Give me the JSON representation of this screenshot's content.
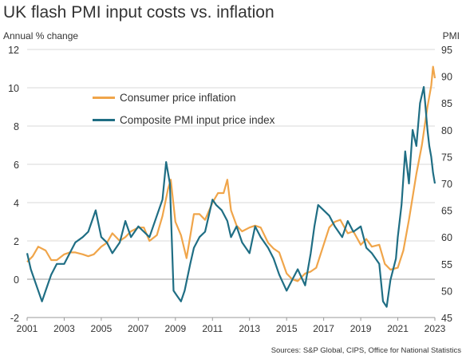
{
  "chart_data": {
    "type": "line",
    "title": "UK flash PMI input costs vs. inflation",
    "ylabel_left": "Annual % change",
    "ylabel_right": "PMI",
    "ylim_left": [
      -2,
      12
    ],
    "ylim_right": [
      45,
      95
    ],
    "xlim": [
      2001,
      2023
    ],
    "x_ticks": [
      "2001",
      "2003",
      "2005",
      "2007",
      "2009",
      "2011",
      "2013",
      "2015",
      "2017",
      "2019",
      "2021",
      "2023"
    ],
    "y_left_ticks": [
      "-2",
      "0",
      "2",
      "4",
      "6",
      "8",
      "10",
      "12"
    ],
    "y_right_ticks": [
      "45",
      "50",
      "55",
      "60",
      "65",
      "70",
      "75",
      "80",
      "85",
      "90",
      "95"
    ],
    "grid": true,
    "legend_position": "top-left",
    "source": "Sources: S&P Global, CIPS, Office for National Statistics",
    "series": [
      {
        "name": "Consumer price inflation",
        "axis": "left",
        "color": "#f0a54a",
        "x": [
          2001.0,
          2001.3,
          2001.6,
          2002.0,
          2002.3,
          2002.6,
          2003.0,
          2003.3,
          2003.6,
          2004.0,
          2004.3,
          2004.6,
          2005.0,
          2005.3,
          2005.6,
          2006.0,
          2006.3,
          2006.6,
          2007.0,
          2007.3,
          2007.6,
          2008.0,
          2008.3,
          2008.6,
          2008.75,
          2009.0,
          2009.3,
          2009.6,
          2010.0,
          2010.3,
          2010.6,
          2011.0,
          2011.3,
          2011.6,
          2011.8,
          2012.0,
          2012.3,
          2012.6,
          2013.0,
          2013.3,
          2013.6,
          2014.0,
          2014.3,
          2014.6,
          2015.0,
          2015.3,
          2015.6,
          2016.0,
          2016.3,
          2016.6,
          2017.0,
          2017.3,
          2017.6,
          2017.9,
          2018.3,
          2018.6,
          2019.0,
          2019.3,
          2019.6,
          2020.0,
          2020.3,
          2020.6,
          2021.0,
          2021.3,
          2021.6,
          2022.0,
          2022.3,
          2022.6,
          2022.8,
          2022.9,
          2023.0
        ],
        "values": [
          0.9,
          1.2,
          1.7,
          1.5,
          1.0,
          1.0,
          1.3,
          1.4,
          1.4,
          1.3,
          1.2,
          1.3,
          1.7,
          1.9,
          2.4,
          2.0,
          2.2,
          2.5,
          2.7,
          2.7,
          2.0,
          2.3,
          3.3,
          4.7,
          5.2,
          3.0,
          2.3,
          1.1,
          3.4,
          3.4,
          3.1,
          4.0,
          4.5,
          4.5,
          5.2,
          3.6,
          2.8,
          2.5,
          2.7,
          2.8,
          2.7,
          1.9,
          1.6,
          1.4,
          0.3,
          0.0,
          -0.1,
          0.3,
          0.4,
          0.6,
          1.8,
          2.7,
          3.0,
          3.1,
          2.4,
          2.5,
          1.8,
          2.1,
          1.7,
          1.8,
          0.8,
          0.5,
          0.6,
          1.5,
          3.1,
          5.5,
          7.0,
          9.0,
          10.1,
          11.1,
          10.5
        ]
      },
      {
        "name": "Composite PMI input price index",
        "axis": "right",
        "color": "#1f6e84",
        "x": [
          2001.0,
          2001.2,
          2001.5,
          2001.8,
          2002.0,
          2002.3,
          2002.6,
          2003.0,
          2003.3,
          2003.6,
          2004.0,
          2004.3,
          2004.7,
          2005.0,
          2005.3,
          2005.6,
          2006.0,
          2006.3,
          2006.6,
          2007.0,
          2007.3,
          2007.6,
          2008.0,
          2008.3,
          2008.5,
          2008.7,
          2008.9,
          2009.1,
          2009.3,
          2009.5,
          2009.8,
          2010.0,
          2010.3,
          2010.6,
          2011.0,
          2011.2,
          2011.5,
          2011.8,
          2012.0,
          2012.3,
          2012.6,
          2013.0,
          2013.3,
          2013.6,
          2014.0,
          2014.3,
          2014.6,
          2015.0,
          2015.3,
          2015.6,
          2016.0,
          2016.3,
          2016.5,
          2016.7,
          2017.0,
          2017.3,
          2017.6,
          2018.0,
          2018.3,
          2018.6,
          2019.0,
          2019.3,
          2019.6,
          2020.0,
          2020.2,
          2020.4,
          2020.6,
          2020.9,
          2021.0,
          2021.2,
          2021.4,
          2021.6,
          2021.8,
          2022.0,
          2022.2,
          2022.4,
          2022.6,
          2022.7,
          2022.8,
          2022.9,
          2023.0
        ],
        "values": [
          57,
          54,
          51,
          48,
          50,
          53,
          55,
          55,
          57,
          59,
          60,
          61,
          65,
          60,
          59,
          57,
          59,
          63,
          60,
          62,
          61,
          60,
          64,
          67,
          74,
          70,
          50,
          49,
          48,
          50,
          55,
          58,
          60,
          61,
          67,
          66,
          65,
          63,
          60,
          62,
          59,
          57,
          62,
          60,
          58,
          56,
          53,
          50,
          52,
          54,
          51,
          57,
          62,
          66,
          65,
          64,
          62,
          60,
          63,
          61,
          62,
          58,
          57,
          55,
          48,
          47,
          52,
          56,
          60,
          66,
          76,
          70,
          80,
          77,
          85,
          88,
          80,
          77,
          75,
          72,
          70
        ]
      }
    ]
  }
}
